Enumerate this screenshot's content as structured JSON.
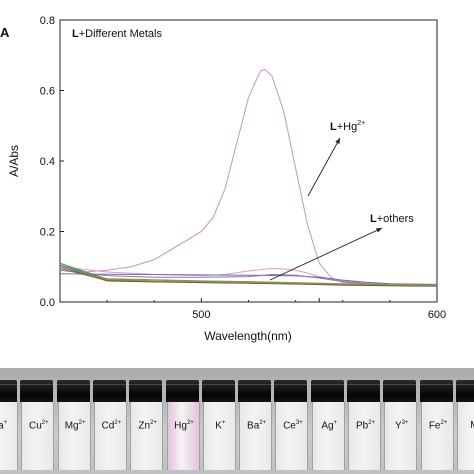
{
  "panel_label": "A",
  "chart_data": {
    "type": "line",
    "title": "L+Different Metals",
    "xlabel": "Wavelength(nm)",
    "ylabel": "A/Abs",
    "xlim": [
      440,
      600
    ],
    "ylim": [
      0,
      0.8
    ],
    "x_ticks": [
      500,
      550,
      600
    ],
    "x_tick_labels": [
      "500",
      "",
      "600"
    ],
    "y_ticks": [
      0.0,
      0.2,
      0.4,
      0.6,
      0.8
    ],
    "y_tick_labels": [
      "0.0",
      "0.2",
      "0.4",
      "0.6",
      "0.8"
    ],
    "annotations": [
      {
        "bold": "L",
        "text": "+Hg",
        "sup": "2+"
      },
      {
        "bold": "L",
        "text": "+others",
        "sup": ""
      }
    ],
    "series": [
      {
        "color": "#c89bd0",
        "x": [
          440,
          450,
          460,
          470,
          480,
          490,
          495,
          500,
          505,
          510,
          515,
          520,
          525,
          527,
          530,
          535,
          540,
          545,
          550,
          555,
          560,
          570,
          580,
          590,
          600
        ],
        "y": [
          0.11,
          0.085,
          0.09,
          0.1,
          0.12,
          0.16,
          0.18,
          0.2,
          0.24,
          0.32,
          0.45,
          0.58,
          0.655,
          0.66,
          0.64,
          0.54,
          0.38,
          0.22,
          0.11,
          0.07,
          0.055,
          0.05,
          0.048,
          0.046,
          0.045
        ]
      },
      {
        "color": "#d79ad0",
        "x": [
          440,
          460,
          480,
          500,
          510,
          520,
          530,
          535,
          540,
          545,
          550,
          560,
          570,
          580,
          600
        ],
        "y": [
          0.1,
          0.085,
          0.078,
          0.075,
          0.078,
          0.088,
          0.095,
          0.094,
          0.09,
          0.082,
          0.072,
          0.06,
          0.054,
          0.05,
          0.048
        ]
      },
      {
        "color": "#6f6fb0",
        "x": [
          440,
          460,
          480,
          500,
          520,
          540,
          550,
          560,
          570,
          580,
          600
        ],
        "y": [
          0.08,
          0.079,
          0.078,
          0.077,
          0.076,
          0.074,
          0.07,
          0.062,
          0.056,
          0.052,
          0.05
        ]
      },
      {
        "color": "#8a7a9a",
        "x": [
          440,
          460,
          480,
          500,
          520,
          530,
          540,
          550,
          560,
          570,
          600
        ],
        "y": [
          0.09,
          0.075,
          0.07,
          0.07,
          0.072,
          0.078,
          0.076,
          0.068,
          0.058,
          0.052,
          0.047
        ]
      },
      {
        "color": "#9a8a4a",
        "x": [
          440,
          460,
          480,
          500,
          520,
          540,
          560,
          580,
          600
        ],
        "y": [
          0.1,
          0.066,
          0.063,
          0.06,
          0.058,
          0.055,
          0.052,
          0.05,
          0.048
        ]
      },
      {
        "color": "#4a8a4a",
        "x": [
          440,
          460,
          480,
          500,
          520,
          540,
          560,
          580,
          600
        ],
        "y": [
          0.11,
          0.065,
          0.06,
          0.058,
          0.056,
          0.054,
          0.05,
          0.048,
          0.047
        ]
      },
      {
        "color": "#3a7ab0",
        "x": [
          440,
          460,
          480,
          500,
          520,
          540,
          560,
          580,
          600
        ],
        "y": [
          0.105,
          0.062,
          0.058,
          0.056,
          0.054,
          0.052,
          0.049,
          0.047,
          0.046
        ]
      },
      {
        "color": "#333333",
        "x": [
          440,
          460,
          480,
          500,
          520,
          540,
          560,
          580,
          600
        ],
        "y": [
          0.1,
          0.06,
          0.057,
          0.055,
          0.053,
          0.051,
          0.048,
          0.046,
          0.045
        ]
      },
      {
        "color": "#b06030",
        "x": [
          440,
          460,
          480,
          500,
          520,
          540,
          560,
          580,
          600
        ],
        "y": [
          0.095,
          0.061,
          0.058,
          0.056,
          0.054,
          0.052,
          0.049,
          0.047,
          0.046
        ]
      },
      {
        "color": "#7aa05a",
        "x": [
          440,
          460,
          480,
          500,
          520,
          540,
          560,
          580,
          600
        ],
        "y": [
          0.1,
          0.064,
          0.06,
          0.058,
          0.056,
          0.054,
          0.051,
          0.049,
          0.048
        ]
      }
    ]
  },
  "vials": [
    {
      "base": "a",
      "sup": "+",
      "tint": "#e7e9e8"
    },
    {
      "base": "Cu",
      "sup": "2+",
      "tint": "#e7e9e8"
    },
    {
      "base": "Mg",
      "sup": "2+",
      "tint": "#e7e9e8"
    },
    {
      "base": "Cd",
      "sup": "2+",
      "tint": "#e7e9e8"
    },
    {
      "base": "Zn",
      "sup": "2+",
      "tint": "#e7e9e8"
    },
    {
      "base": "Hg",
      "sup": "2+",
      "tint": "#e6c4dc"
    },
    {
      "base": "K",
      "sup": "+",
      "tint": "#e7e9e8"
    },
    {
      "base": "Ba",
      "sup": "2+",
      "tint": "#e7e9e8"
    },
    {
      "base": "Ce",
      "sup": "3+",
      "tint": "#e7e9e8"
    },
    {
      "base": "Ag",
      "sup": "+",
      "tint": "#e7e9e8"
    },
    {
      "base": "Pb",
      "sup": "2+",
      "tint": "#e7e9e8"
    },
    {
      "base": "Y",
      "sup": "3+",
      "tint": "#e7e9e8"
    },
    {
      "base": "Fe",
      "sup": "2+",
      "tint": "#e7e9e8"
    },
    {
      "base": "M",
      "sup": "",
      "tint": "#e7e9e8"
    }
  ]
}
